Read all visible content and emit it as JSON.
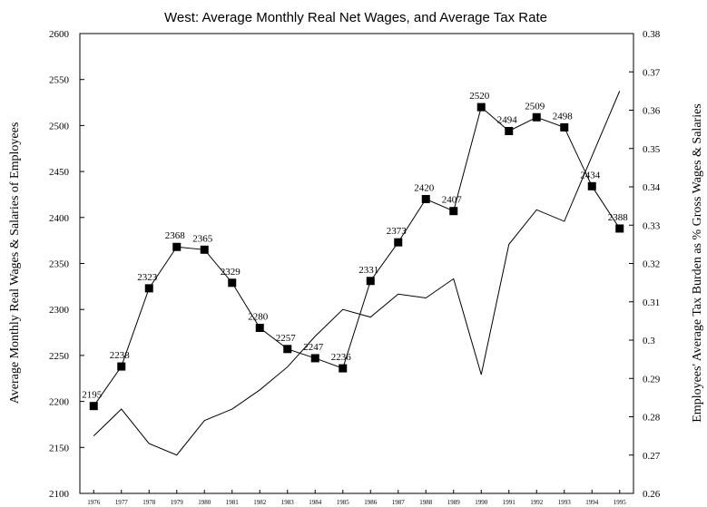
{
  "chart_data": {
    "type": "line",
    "title": "West: Average Monthly Real Net Wages, and Average Tax Rate",
    "y_label": "Average Monthly Real Wages & Salaries of Employees",
    "y2_label": "Employees' Average Tax Burden as % Gross Wages & Salaries",
    "categories": [
      "1976",
      "1977",
      "1978",
      "1979",
      "1980",
      "1981",
      "1982",
      "1983",
      "1984",
      "1985",
      "1986",
      "1987",
      "1988",
      "1989",
      "1990",
      "1991",
      "1992",
      "1993",
      "1994",
      "1995"
    ],
    "series": [
      {
        "color": "#000000",
        "marker": "square",
        "show_values": true,
        "values": [
          2195,
          2238,
          2323,
          2368,
          2365,
          2329,
          2280,
          2257,
          2247,
          2236,
          2331,
          2373,
          2420,
          2407,
          2520,
          2494,
          2509,
          2498,
          2434,
          2388
        ]
      },
      {
        "color": "#000000",
        "axis": "y2",
        "values": [
          0.275,
          0.282,
          0.273,
          0.27,
          0.279,
          0.282,
          0.287,
          0.293,
          0.301,
          0.308,
          0.306,
          0.312,
          0.311,
          0.316,
          0.291,
          0.325,
          0.334,
          0.331,
          0.348,
          0.365
        ]
      }
    ],
    "ylim": [
      2100,
      2600
    ],
    "yticks": [
      2100,
      2150,
      2200,
      2250,
      2300,
      2350,
      2400,
      2450,
      2500,
      2550,
      2600
    ],
    "y2lim": [
      0.26,
      0.38
    ],
    "y2ticks": [
      0.26,
      0.27,
      0.28,
      0.29,
      0.3,
      0.31,
      0.32,
      0.33,
      0.34,
      0.35,
      0.36,
      0.37,
      0.38
    ]
  }
}
